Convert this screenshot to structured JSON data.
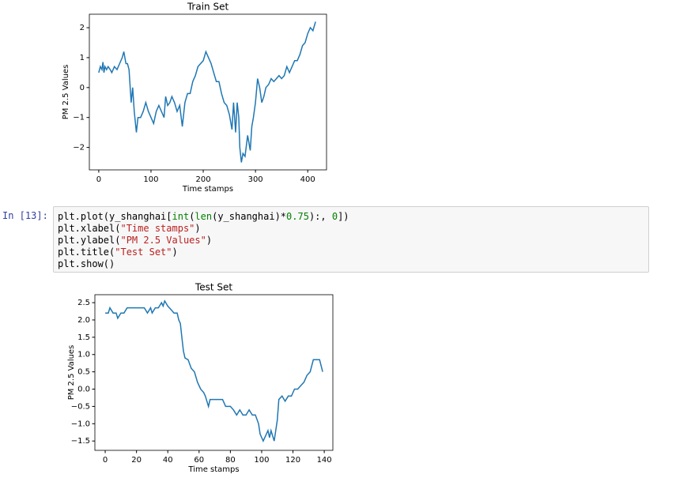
{
  "chart_data": [
    {
      "type": "line",
      "title": "Train Set",
      "xlabel": "Time stamps",
      "ylabel": "PM 2.5 Values",
      "color": "#1f77b4",
      "x": [
        0,
        3,
        6,
        8,
        10,
        12,
        15,
        18,
        22,
        25,
        30,
        35,
        40,
        45,
        48,
        52,
        55,
        58,
        62,
        65,
        68,
        72,
        75,
        80,
        85,
        90,
        95,
        100,
        105,
        110,
        115,
        120,
        125,
        128,
        132,
        136,
        140,
        145,
        150,
        155,
        160,
        165,
        170,
        175,
        180,
        185,
        190,
        195,
        200,
        205,
        210,
        215,
        220,
        225,
        230,
        235,
        240,
        245,
        250,
        255,
        258,
        262,
        265,
        268,
        270,
        273,
        276,
        280,
        285,
        290,
        293,
        296,
        300,
        304,
        308,
        312,
        316,
        320,
        325,
        330,
        335,
        340,
        345,
        350,
        355,
        360,
        365,
        370,
        375,
        380,
        385,
        390,
        395,
        400,
        405,
        410,
        415
      ],
      "values": [
        0.5,
        0.7,
        0.6,
        0.85,
        0.5,
        0.7,
        0.6,
        0.7,
        0.6,
        0.5,
        0.7,
        0.6,
        0.8,
        1.0,
        1.2,
        0.8,
        0.8,
        0.6,
        -0.5,
        0,
        -0.8,
        -1.5,
        -1.0,
        -1.0,
        -0.8,
        -0.5,
        -0.8,
        -1.0,
        -1.2,
        -0.8,
        -0.6,
        -0.8,
        -1.0,
        -0.3,
        -0.6,
        -0.5,
        -0.3,
        -0.5,
        -0.8,
        -0.6,
        -1.3,
        -0.5,
        -0.2,
        -0.2,
        0.2,
        0.4,
        0.7,
        0.8,
        0.9,
        1.2,
        1.0,
        0.8,
        0.5,
        0.2,
        0.2,
        -0.2,
        -0.5,
        -0.6,
        -0.9,
        -1.4,
        -0.5,
        -1.5,
        -0.5,
        -1.0,
        -2.0,
        -2.5,
        -2.2,
        -2.3,
        -1.6,
        -2.1,
        -1.3,
        -1.0,
        -0.5,
        0.3,
        0.0,
        -0.5,
        -0.3,
        0.0,
        0.1,
        0.3,
        0.2,
        0.3,
        0.4,
        0.3,
        0.4,
        0.7,
        0.5,
        0.7,
        0.9,
        0.9,
        1.1,
        1.4,
        1.5,
        1.8,
        2.0,
        1.9,
        2.2
      ],
      "xlim": [
        -18,
        436
      ],
      "xticks": [
        0,
        100,
        200,
        300,
        400
      ],
      "ylim": [
        -2.75,
        2.45
      ],
      "yticks": [
        {
          "value": -2,
          "label": "−2"
        },
        {
          "value": -1,
          "label": "−1"
        },
        0,
        1,
        2
      ]
    },
    {
      "type": "line",
      "title": "Test Set",
      "xlabel": "Time stamps",
      "ylabel": "PM 2.5 Values",
      "color": "#1f77b4",
      "x": [
        0,
        2,
        3,
        5,
        7,
        8,
        10,
        12,
        14,
        20,
        25,
        27,
        29,
        30,
        32,
        34,
        36,
        37,
        38,
        40,
        42,
        44,
        46,
        47,
        48,
        49,
        50,
        51,
        53,
        55,
        57,
        59,
        61,
        63,
        64,
        66,
        67,
        70,
        75,
        77,
        80,
        82,
        84,
        86,
        88,
        90,
        92,
        94,
        96,
        98,
        99,
        101,
        103,
        104,
        105,
        106,
        108,
        110,
        111,
        113,
        115,
        117,
        119,
        121,
        123,
        125,
        127,
        129,
        131,
        133,
        137,
        139
      ],
      "values": [
        2.2,
        2.2,
        2.35,
        2.2,
        2.2,
        2.05,
        2.2,
        2.2,
        2.35,
        2.35,
        2.35,
        2.2,
        2.35,
        2.2,
        2.35,
        2.35,
        2.5,
        2.4,
        2.55,
        2.4,
        2.3,
        2.2,
        2.2,
        2.0,
        1.9,
        1.5,
        1.1,
        0.9,
        0.85,
        0.6,
        0.5,
        0.2,
        0.0,
        -0.1,
        -0.2,
        -0.5,
        -0.3,
        -0.3,
        -0.3,
        -0.5,
        -0.5,
        -0.6,
        -0.75,
        -0.6,
        -0.75,
        -0.75,
        -0.6,
        -0.75,
        -0.75,
        -1.0,
        -1.3,
        -1.5,
        -1.3,
        -1.2,
        -1.4,
        -1.2,
        -1.5,
        -0.9,
        -0.3,
        -0.2,
        -0.35,
        -0.2,
        -0.2,
        0,
        0,
        0.1,
        0.2,
        0.4,
        0.5,
        0.85,
        0.85,
        0.5
      ],
      "xlim": [
        -6.6,
        145.5
      ],
      "xticks": [
        0,
        20,
        40,
        60,
        80,
        100,
        120,
        140
      ],
      "ylim": [
        -1.77,
        2.73
      ],
      "yticks": [
        {
          "value": -1.5,
          "label": "−1.5"
        },
        {
          "value": -1.0,
          "label": "−1.0"
        },
        {
          "value": -0.5,
          "label": "−0.5"
        },
        {
          "value": 0,
          "label": "0.0"
        },
        0.5,
        {
          "value": 1.0,
          "label": "1.0"
        },
        1.5,
        {
          "value": 2.0,
          "label": "2.0"
        },
        2.5
      ]
    }
  ],
  "cell": {
    "prompt": "In [13]:",
    "lines": [
      [
        {
          "text": "plt.plot(y_shanghai[",
          "color": "#000000"
        },
        {
          "text": "int",
          "color": "#008000"
        },
        {
          "text": "(",
          "color": "#000000"
        },
        {
          "text": "len",
          "color": "#008000"
        },
        {
          "text": "(y_shanghai)*",
          "color": "#000000"
        },
        {
          "text": "0.75",
          "color": "#008000"
        },
        {
          "text": "):, ",
          "color": "#000000"
        },
        {
          "text": "0",
          "color": "#008000"
        },
        {
          "text": "])",
          "color": "#000000"
        }
      ],
      [
        {
          "text": "plt.xlabel(",
          "color": "#000000"
        },
        {
          "text": "\"Time stamps\"",
          "color": "#ba2121"
        },
        {
          "text": ")",
          "color": "#000000"
        }
      ],
      [
        {
          "text": "plt.ylabel(",
          "color": "#000000"
        },
        {
          "text": "\"PM 2.5 Values\"",
          "color": "#ba2121"
        },
        {
          "text": ")",
          "color": "#000000"
        }
      ],
      [
        {
          "text": "plt.title(",
          "color": "#000000"
        },
        {
          "text": "\"Test Set\"",
          "color": "#ba2121"
        },
        {
          "text": ")",
          "color": "#000000"
        }
      ],
      [
        {
          "text": "plt.show()",
          "color": "#000000"
        }
      ]
    ]
  }
}
